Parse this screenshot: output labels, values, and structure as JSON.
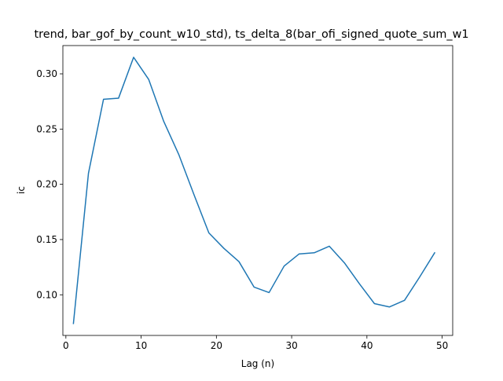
{
  "chart_data": {
    "type": "line",
    "title": "trend, bar_gof_by_count_w10_std), ts_delta_8(bar_ofi_signed_quote_sum_w1",
    "xlabel": "Lag (n)",
    "ylabel": "ic",
    "xlim": [
      -0.4,
      51.4
    ],
    "ylim": [
      0.0632,
      0.3256
    ],
    "xticks": [
      0,
      10,
      20,
      30,
      40,
      50
    ],
    "xtick_labels": [
      "0",
      "10",
      "20",
      "30",
      "40",
      "50"
    ],
    "yticks": [
      0.1,
      0.15,
      0.2,
      0.25,
      0.3
    ],
    "ytick_labels": [
      "0.10",
      "0.15",
      "0.20",
      "0.25",
      "0.30"
    ],
    "grid": false,
    "legend": "none",
    "series": [
      {
        "color": "#1f77b4",
        "x": [
          1,
          3,
          5,
          7,
          9,
          11,
          13,
          15,
          17,
          19,
          21,
          23,
          25,
          27,
          29,
          31,
          33,
          35,
          37,
          39,
          41,
          43,
          45,
          47,
          49
        ],
        "y": [
          0.074,
          0.21,
          0.277,
          0.278,
          0.315,
          0.295,
          0.257,
          0.227,
          0.191,
          0.156,
          0.142,
          0.13,
          0.107,
          0.102,
          0.126,
          0.137,
          0.138,
          0.144,
          0.129,
          0.11,
          0.092,
          0.089,
          0.095,
          0.116,
          0.138
        ]
      }
    ]
  }
}
